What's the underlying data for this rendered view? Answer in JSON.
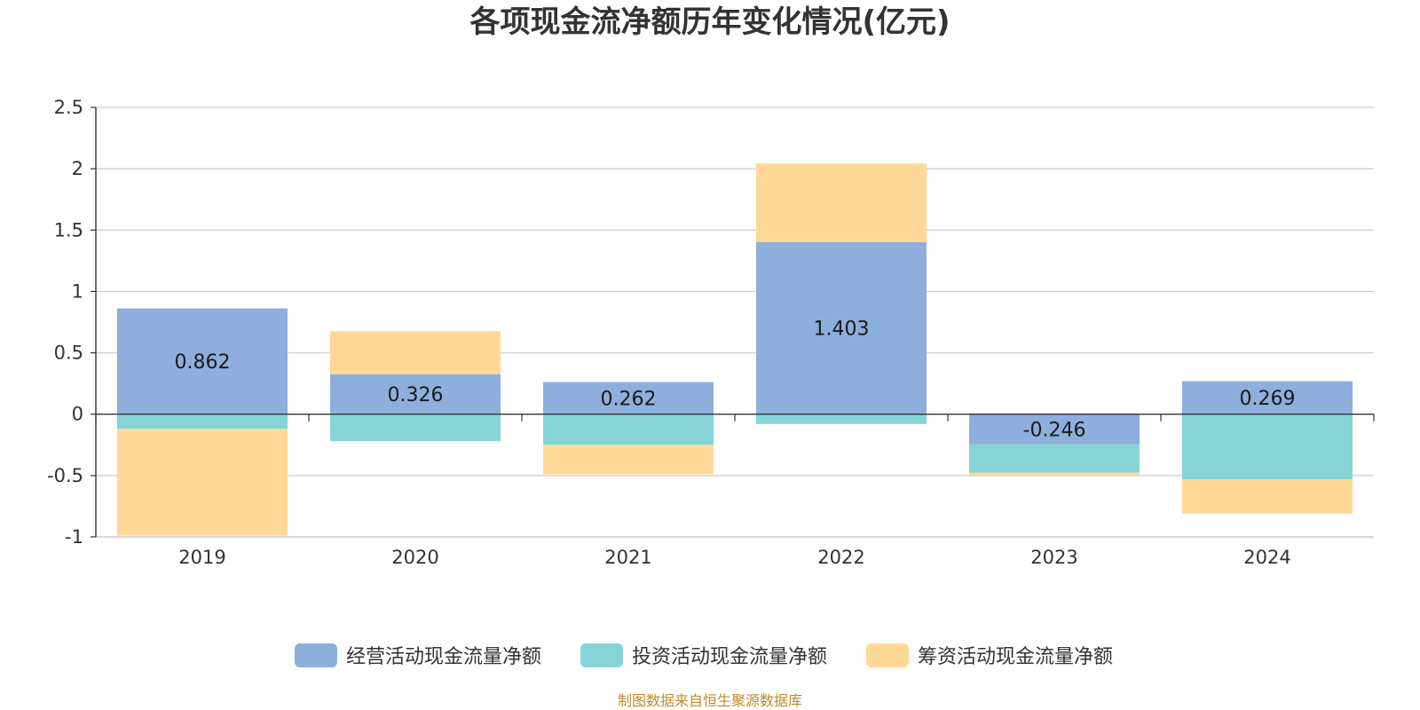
{
  "chart_data": {
    "type": "bar",
    "stacked": true,
    "title": "各项现金流净额历年变化情况(亿元)",
    "xlabel": "",
    "ylabel": "",
    "categories": [
      "2019",
      "2020",
      "2021",
      "2022",
      "2023",
      "2024"
    ],
    "ylim": [
      -1,
      2.5
    ],
    "yticks": [
      2.5,
      2,
      1.5,
      1,
      0.5,
      0,
      -0.5,
      -1
    ],
    "ytick_labels": [
      "2.5",
      "2",
      "1.5",
      "1",
      "0.5",
      "0",
      "-0.5",
      "-1"
    ],
    "grid": true,
    "legend_position": "bottom-center",
    "series": [
      {
        "name": "经营活动现金流量净额",
        "color": "#8eaedc",
        "values": [
          0.862,
          0.326,
          0.262,
          1.403,
          -0.246,
          0.269
        ],
        "data_labels": [
          "0.862",
          "0.326",
          "0.262",
          "1.403",
          "-0.246",
          "0.269"
        ]
      },
      {
        "name": "投资活动现金流量净额",
        "color": "#86d4d6",
        "values": [
          -0.12,
          -0.22,
          -0.25,
          -0.08,
          -0.23,
          -0.53
        ]
      },
      {
        "name": "筹资活动现金流量净额",
        "color": "#ffd898",
        "values": [
          -0.87,
          0.35,
          -0.24,
          0.64,
          -0.02,
          -0.28
        ]
      }
    ],
    "source": "制图数据来自恒生聚源数据库"
  }
}
